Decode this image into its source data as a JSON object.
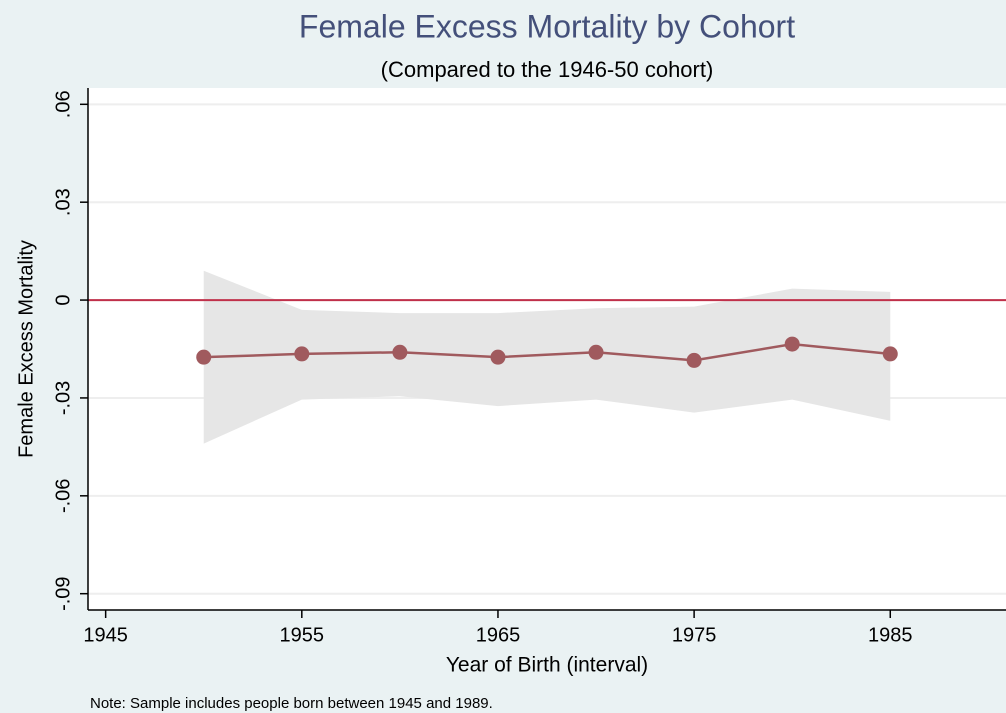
{
  "chart_data": {
    "type": "line",
    "title": "Female Excess Mortality by Cohort",
    "subtitle": "(Compared to the 1946-50 cohort)",
    "x_label": "Year of Birth (interval)",
    "y_label": "Female Excess Mortality",
    "note": "Note: Sample includes people born between 1945 and 1989.",
    "x": [
      1950,
      1955,
      1960,
      1965,
      1970,
      1975,
      1980,
      1985
    ],
    "values": [
      -0.0175,
      -0.0165,
      -0.016,
      -0.0175,
      -0.016,
      -0.0185,
      -0.0135,
      -0.0165
    ],
    "ci_upper": [
      0.009,
      -0.003,
      -0.004,
      -0.004,
      -0.0025,
      -0.002,
      0.0035,
      0.0025
    ],
    "ci_lower": [
      -0.044,
      -0.0305,
      -0.0295,
      -0.0325,
      -0.0305,
      -0.0345,
      -0.0305,
      -0.037
    ],
    "color": "#a05a5e",
    "ci_color": "#e6e6e6",
    "reference_line": 0,
    "reference_color": "#c0304a",
    "xlim": [
      1944.1,
      1990.9
    ],
    "ylim": [
      -0.095,
      0.065
    ],
    "xticks": [
      1945,
      1955,
      1965,
      1975,
      1985
    ],
    "yticks": [
      {
        "value": -0.09,
        "label": "-.09"
      },
      {
        "value": -0.06,
        "label": "-.06"
      },
      {
        "value": -0.03,
        "label": "-.03"
      },
      0,
      {
        "value": 0.03,
        "label": ".03"
      },
      {
        "value": 0.06,
        "label": ".06"
      }
    ],
    "grid": true
  }
}
